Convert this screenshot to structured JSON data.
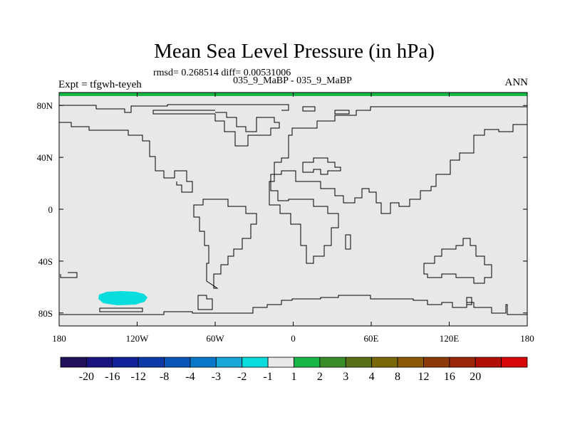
{
  "chart_data": {
    "type": "map",
    "title": "Mean Sea Level Pressure (in hPa)",
    "stats_text": "rmsd= 0.268514 diff= 0.00531006",
    "experiment_title": "035_9_MaBP - 035_9_MaBP",
    "left_label": "Expt = tfgwh-teyeh",
    "right_label": "ANN",
    "lon_range": [
      -180,
      180
    ],
    "lat_range": [
      -90,
      90
    ],
    "x_ticks": [
      {
        "lon": -180,
        "label": "180"
      },
      {
        "lon": -120,
        "label": "120W"
      },
      {
        "lon": -60,
        "label": "60W"
      },
      {
        "lon": 0,
        "label": "0"
      },
      {
        "lon": 60,
        "label": "60E"
      },
      {
        "lon": 120,
        "label": "120E"
      },
      {
        "lon": 180,
        "label": "180"
      }
    ],
    "y_ticks": [
      {
        "lat": 80,
        "label": "80N"
      },
      {
        "lat": 40,
        "label": "40N"
      },
      {
        "lat": 0,
        "label": "0"
      },
      {
        "lat": -40,
        "label": "40S"
      },
      {
        "lat": -80,
        "label": "80S"
      }
    ],
    "colorbar": {
      "colors": [
        "#22105c",
        "#1a1480",
        "#12229a",
        "#0c3aa8",
        "#0955b8",
        "#0a78c8",
        "#18a8d8",
        "#08dcdc",
        "#e8e8e8",
        "#18b848",
        "#3a8c28",
        "#5a7018",
        "#7a6808",
        "#8a5a08",
        "#8c3a08",
        "#9a2808",
        "#b01008",
        "#d80808"
      ],
      "labels": [
        "-20",
        "-16",
        "-12",
        "-8",
        "-4",
        "-3",
        "-2",
        "-1",
        "1",
        "2",
        "3",
        "4",
        "8",
        "12",
        "16",
        "20"
      ]
    },
    "field_anomalies": [
      {
        "band": "-2 to -1",
        "color": "#08dcdc",
        "region": "South Pacific",
        "lon_center": -125,
        "lat_center": -68
      }
    ],
    "background_band": "-1 to 1",
    "background_color": "#e8e8e8",
    "top_edge_band": "1 to 2",
    "top_edge_color": "#18b848"
  }
}
